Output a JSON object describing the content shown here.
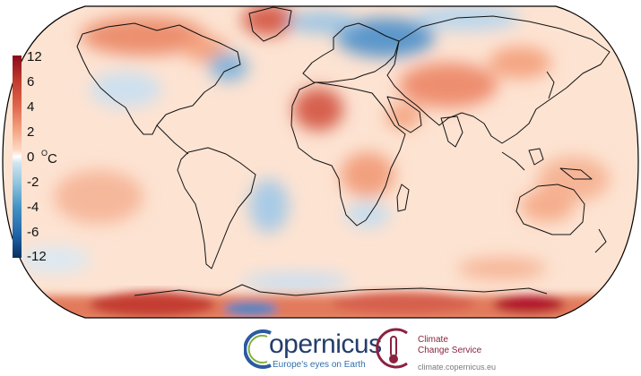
{
  "colorbar": {
    "ticks": [
      "12",
      "6",
      "4",
      "2",
      "0",
      "-2",
      "-4",
      "-6",
      "-12"
    ],
    "unit_value": "0",
    "unit_super": "O",
    "unit_text": "C",
    "colors": [
      "#053061",
      "#2166ac",
      "#4393c3",
      "#92c5de",
      "#d1e5f0",
      "#ffffff",
      "#fddbc7",
      "#f4a582",
      "#d6604d",
      "#b2182b",
      "#67001f"
    ]
  },
  "logos": {
    "copernicus_word": "opernicus",
    "copernicus_tagline": "Europe's eyes on Earth",
    "c3s_line1": "Climate",
    "c3s_line2": "Change Service",
    "c3s_url": "climate.copernicus.eu"
  }
}
